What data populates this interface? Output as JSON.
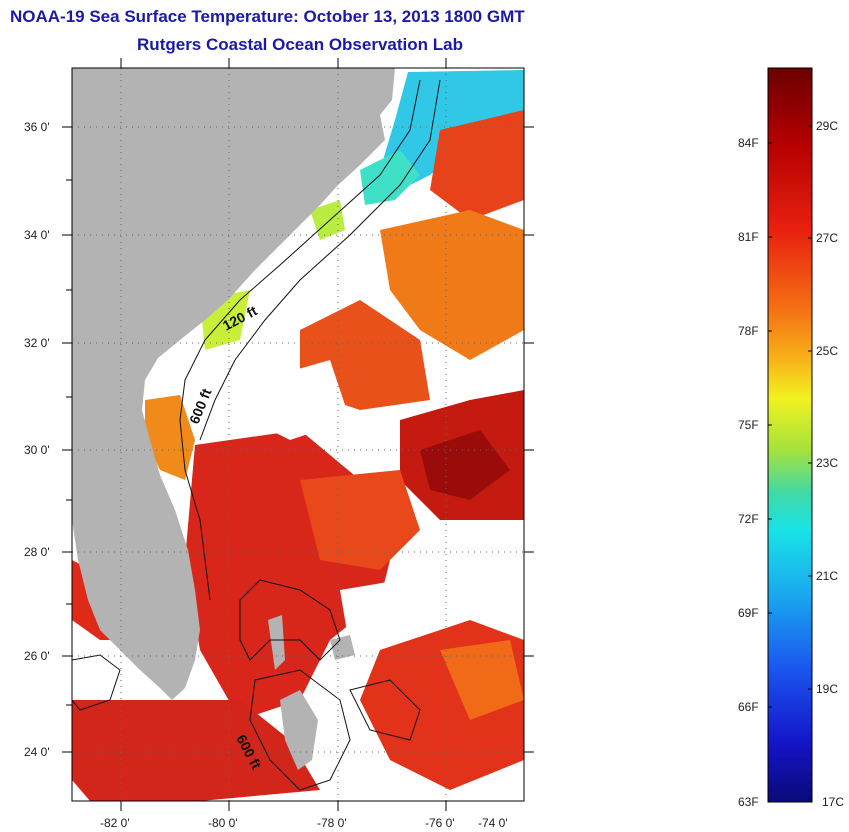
{
  "header": {
    "title_line1": "NOAA-19 Sea Surface Temperature:  October 13, 2013 1800 GMT",
    "title_line2": "Rutgers Coastal Ocean Observation Lab"
  },
  "map": {
    "lat_ticks": [
      "36 0'",
      "34 0'",
      "32 0'",
      "30 0'",
      "28 0'",
      "26 0'",
      "24 0'"
    ],
    "lon_ticks": [
      "-82 0'",
      "-80 0'",
      "-78 0'",
      "-76 0'",
      "-74 0'"
    ],
    "contours": [
      "120 ft",
      "600 ft",
      "600 ft"
    ]
  },
  "colorbar": {
    "f_labels": [
      "84F",
      "81F",
      "78F",
      "75F",
      "72F",
      "69F",
      "66F",
      "63F"
    ],
    "c_labels": [
      "29C",
      "27C",
      "25C",
      "23C",
      "21C",
      "19C",
      "17C"
    ],
    "colors": [
      "#6b0000",
      "#b30000",
      "#e8200f",
      "#f47214",
      "#f7b51a",
      "#f2f220",
      "#a6e23c",
      "#3fd9a8",
      "#19e3e6",
      "#1aa6ef",
      "#1b55ee",
      "#1414c8",
      "#0a0a78"
    ]
  },
  "colors": {
    "land": "#b3b3b3",
    "title": "#1a1aa6",
    "hot": "#d42a14",
    "warm": "#ee5a12",
    "cool": "#36d6e6"
  }
}
